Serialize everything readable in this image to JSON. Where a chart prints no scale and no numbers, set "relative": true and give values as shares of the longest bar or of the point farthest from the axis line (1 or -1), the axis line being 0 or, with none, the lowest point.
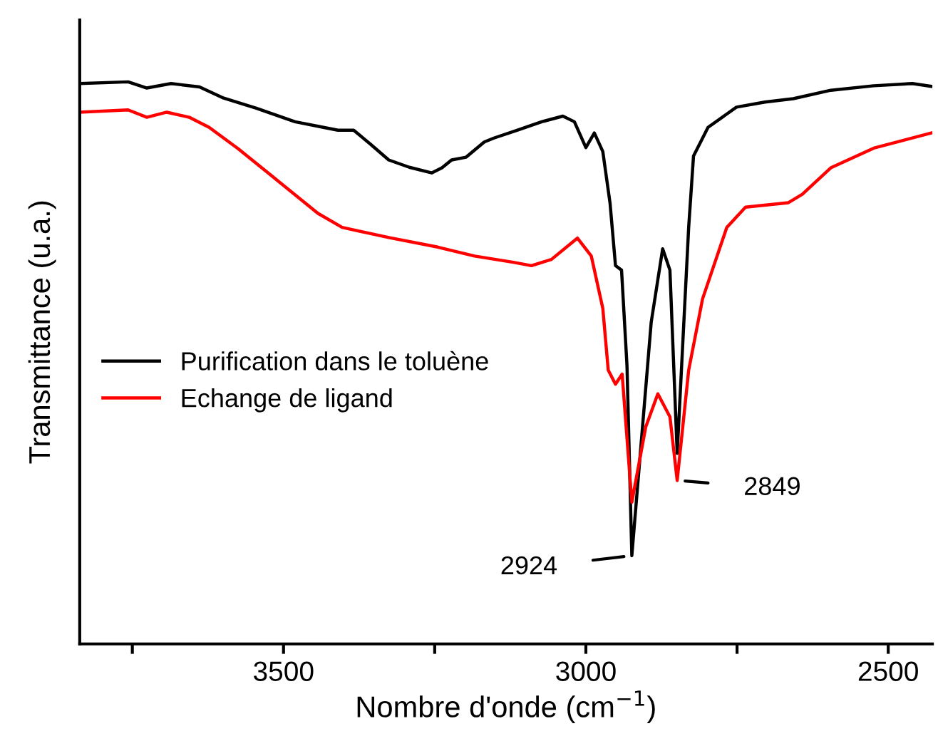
{
  "chart_data": {
    "type": "line",
    "relative": true,
    "xlabel": "Nombre d'onde (cm$^{−1}$)",
    "ylabel": "Transmittance (u.a.)",
    "xlim": [
      3837,
      2427
    ],
    "xticks": [
      {
        "value": 3750,
        "label": null
      },
      3500,
      {
        "value": 3250,
        "label": null
      },
      3000,
      {
        "value": 2750,
        "label": null
      },
      2500
    ],
    "legend": "left",
    "grid": false,
    "marker": "none",
    "line_style": "solid",
    "annotations": [
      {
        "text": "2924",
        "x": 2924,
        "y": 0.157
      },
      {
        "text": "2849",
        "x": 2849,
        "y": 0.291
      }
    ],
    "series": [
      {
        "name": "Purification dans le toluène",
        "color": "#000000",
        "x": [
          3836,
          3757,
          3726,
          3686,
          3639,
          3599,
          3545,
          3481,
          3434,
          3410,
          3384,
          3356,
          3326,
          3292,
          3255,
          3238,
          3222,
          3198,
          3168,
          3152,
          3113,
          3073,
          3038,
          3019,
          3000,
          2986,
          2972,
          2960,
          2951,
          2941,
          2932,
          2924,
          2892,
          2873,
          2861,
          2849,
          2830,
          2822,
          2798,
          2751,
          2704,
          2657,
          2595,
          2524,
          2460,
          2429
        ],
        "values": [
          0.997,
          1.0,
          0.989,
          0.997,
          0.991,
          0.971,
          0.953,
          0.929,
          0.919,
          0.914,
          0.914,
          0.889,
          0.861,
          0.848,
          0.838,
          0.847,
          0.861,
          0.866,
          0.893,
          0.9,
          0.914,
          0.929,
          0.939,
          0.929,
          0.883,
          0.909,
          0.876,
          0.784,
          0.673,
          0.665,
          0.495,
          0.157,
          0.572,
          0.703,
          0.665,
          0.339,
          0.741,
          0.868,
          0.919,
          0.955,
          0.964,
          0.97,
          0.985,
          0.993,
          0.997,
          0.992
        ]
      },
      {
        "name": "Echange de ligand",
        "color": "#ff0000",
        "x": [
          3836,
          3757,
          3726,
          3693,
          3656,
          3623,
          3575,
          3521,
          3443,
          3403,
          3326,
          3245,
          3184,
          3120,
          3090,
          3057,
          3014,
          2991,
          2972,
          2963,
          2951,
          2940,
          2924,
          2901,
          2881,
          2861,
          2849,
          2830,
          2807,
          2767,
          2736,
          2665,
          2642,
          2595,
          2524,
          2429
        ],
        "values": [
          0.946,
          0.95,
          0.937,
          0.946,
          0.937,
          0.919,
          0.881,
          0.834,
          0.766,
          0.741,
          0.723,
          0.706,
          0.69,
          0.679,
          0.673,
          0.684,
          0.722,
          0.69,
          0.597,
          0.487,
          0.462,
          0.48,
          0.252,
          0.386,
          0.445,
          0.404,
          0.291,
          0.487,
          0.614,
          0.741,
          0.777,
          0.785,
          0.8,
          0.847,
          0.882,
          0.909
        ]
      }
    ]
  }
}
